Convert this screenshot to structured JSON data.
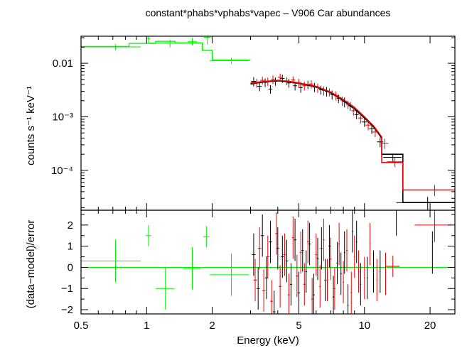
{
  "chart_data": [
    {
      "type": "scatter",
      "title": "constant*phabs*vphabs*vapec – V906 Car abundances",
      "xlabel": "",
      "ylabel": "counts s⁻¹ keV⁻¹",
      "xscale": "log",
      "yscale": "log",
      "xlim": [
        0.5,
        26
      ],
      "ylim": [
        1.8e-05,
        0.032
      ],
      "y_ticks": [
        {
          "value": 0.01,
          "label": "0.01"
        },
        {
          "value": 0.001,
          "label": "10⁻³"
        },
        {
          "value": 0.0001,
          "label": "10⁻⁴"
        }
      ],
      "grid": false,
      "colors": {
        "green": "#00ee00",
        "black": "#000000",
        "red": "#ee0000"
      },
      "series": [
        {
          "color": "#00ee00",
          "points": [
            [
              0.72,
              0.0202,
              0.22,
              0.0025
            ],
            [
              1.02,
              0.029,
              0.02,
              0.005
            ],
            [
              1.28,
              0.0238,
              0.25,
              0.004
            ],
            [
              1.62,
              0.0256,
              0.08,
              0.004
            ],
            [
              1.9,
              0.0305,
              0.07,
              0.008
            ],
            [
              2.45,
              0.0112,
              0.5,
              0.0015
            ]
          ],
          "model_step": [
            [
              0.5,
              0.0206
            ],
            [
              0.83,
              0.0206
            ],
            [
              0.83,
              0.0235
            ],
            [
              1.1,
              0.0235
            ],
            [
              1.1,
              0.0258
            ],
            [
              1.35,
              0.0258
            ],
            [
              1.35,
              0.024
            ],
            [
              1.8,
              0.024
            ],
            [
              1.8,
              0.0175
            ],
            [
              2.0,
              0.0175
            ],
            [
              2.0,
              0.0115
            ],
            [
              3.0,
              0.0115
            ]
          ]
        },
        {
          "color": "#000000",
          "points": [
            [
              3.1,
              0.0046,
              0.08,
              0.0009
            ],
            [
              3.3,
              0.0037,
              0.08,
              0.0007
            ],
            [
              3.5,
              0.0044,
              0.08,
              0.0008
            ],
            [
              3.7,
              0.0033,
              0.08,
              0.0006
            ],
            [
              3.9,
              0.0046,
              0.08,
              0.0008
            ],
            [
              4.2,
              0.0052,
              0.1,
              0.0009
            ],
            [
              4.5,
              0.0043,
              0.1,
              0.0008
            ],
            [
              4.8,
              0.0038,
              0.1,
              0.0007
            ],
            [
              5.1,
              0.0035,
              0.1,
              0.0007
            ],
            [
              5.5,
              0.004,
              0.12,
              0.0007
            ],
            [
              5.9,
              0.0036,
              0.12,
              0.0007
            ],
            [
              6.3,
              0.0032,
              0.12,
              0.0006
            ],
            [
              6.7,
              0.003,
              0.12,
              0.0006
            ],
            [
              7.1,
              0.0026,
              0.14,
              0.0005
            ],
            [
              7.6,
              0.0022,
              0.14,
              0.0004
            ],
            [
              8.1,
              0.0019,
              0.14,
              0.0004
            ],
            [
              8.6,
              0.0016,
              0.16,
              0.0003
            ],
            [
              9.2,
              0.0011,
              0.2,
              0.0002
            ],
            [
              10.0,
              0.0008,
              0.3,
              0.00015
            ],
            [
              10.8,
              0.0006,
              0.3,
              0.00012
            ],
            [
              11.8,
              0.00034,
              0.4,
              7e-05
            ],
            [
              13.5,
              0.000175,
              1.3,
              3e-05
            ],
            [
              19.5,
              2.5e-05,
              5.5,
              7e-06
            ]
          ],
          "model_step": [
            [
              3.0,
              0.0041
            ],
            [
              3.5,
              0.0045
            ],
            [
              4.0,
              0.0047
            ],
            [
              4.5,
              0.0045
            ],
            [
              5.0,
              0.0042
            ],
            [
              6.0,
              0.0036
            ],
            [
              7.0,
              0.0028
            ],
            [
              8.0,
              0.002
            ],
            [
              9.0,
              0.0014
            ],
            [
              10.0,
              0.00095
            ],
            [
              11.0,
              0.00065
            ],
            [
              12.0,
              0.0004
            ],
            [
              12.0,
              0.0002
            ],
            [
              15.0,
              0.0002
            ],
            [
              15.0,
              2.5e-05
            ],
            [
              26.0,
              2.5e-05
            ]
          ]
        },
        {
          "color": "#ee0000",
          "points": [
            [
              3.2,
              0.0043,
              0.08,
              0.0008
            ],
            [
              3.4,
              0.0048,
              0.08,
              0.0008
            ],
            [
              3.6,
              0.0046,
              0.08,
              0.0008
            ],
            [
              3.8,
              0.005,
              0.08,
              0.0009
            ],
            [
              4.1,
              0.0055,
              0.1,
              0.0009
            ],
            [
              4.4,
              0.0047,
              0.1,
              0.0008
            ],
            [
              4.7,
              0.0049,
              0.1,
              0.0008
            ],
            [
              5.0,
              0.0043,
              0.1,
              0.0008
            ],
            [
              5.3,
              0.0038,
              0.12,
              0.0007
            ],
            [
              5.7,
              0.0041,
              0.12,
              0.0007
            ],
            [
              6.1,
              0.0035,
              0.12,
              0.0007
            ],
            [
              6.5,
              0.0031,
              0.12,
              0.0006
            ],
            [
              6.9,
              0.0029,
              0.14,
              0.0005
            ],
            [
              7.4,
              0.0025,
              0.14,
              0.0005
            ],
            [
              7.9,
              0.002,
              0.14,
              0.0004
            ],
            [
              8.4,
              0.0017,
              0.16,
              0.0003
            ],
            [
              8.9,
              0.0013,
              0.2,
              0.00025
            ],
            [
              9.6,
              0.00095,
              0.25,
              0.0002
            ],
            [
              10.4,
              0.0007,
              0.3,
              0.00014
            ],
            [
              11.2,
              0.00052,
              0.35,
              0.0001
            ],
            [
              12.4,
              0.00032,
              0.5,
              7e-05
            ],
            [
              13.8,
              0.000145,
              1.1,
              3e-05
            ],
            [
              21.0,
              4.3e-05,
              5.0,
              1e-05
            ]
          ],
          "model_step": [
            [
              3.0,
              0.0043
            ],
            [
              3.5,
              0.0046
            ],
            [
              4.0,
              0.0048
            ],
            [
              4.5,
              0.0046
            ],
            [
              5.0,
              0.0043
            ],
            [
              6.0,
              0.0037
            ],
            [
              7.0,
              0.0029
            ],
            [
              8.0,
              0.0021
            ],
            [
              9.0,
              0.0015
            ],
            [
              10.0,
              0.001
            ],
            [
              11.0,
              0.00068
            ],
            [
              12.0,
              0.00042
            ],
            [
              12.0,
              0.00014
            ],
            [
              15.0,
              0.00014
            ],
            [
              15.0,
              4.3e-05
            ],
            [
              26.0,
              4.3e-05
            ]
          ]
        }
      ]
    },
    {
      "type": "scatter",
      "xlabel": "Energy (keV)",
      "ylabel": "(data−model)/error",
      "xscale": "log",
      "xlim": [
        0.5,
        26
      ],
      "ylim": [
        -2.2,
        2.7
      ],
      "x_ticks": [
        {
          "value": 0.5,
          "label": "0.5"
        },
        {
          "value": 1,
          "label": "1"
        },
        {
          "value": 2,
          "label": "2"
        },
        {
          "value": 5,
          "label": "5"
        },
        {
          "value": 10,
          "label": "10"
        },
        {
          "value": 20,
          "label": "20"
        }
      ],
      "y_ticks": [
        {
          "value": 2,
          "label": "2"
        },
        {
          "value": 1,
          "label": "1"
        },
        {
          "value": 0,
          "label": "0"
        },
        {
          "value": -1,
          "label": "−1"
        },
        {
          "value": -2,
          "label": "−2"
        }
      ],
      "zero_line": 0,
      "grid": false,
      "series": [
        {
          "color": "#00ee00",
          "points": [
            [
              0.72,
              0.3,
              0.22,
              1.0
            ],
            [
              1.02,
              1.5,
              0.03,
              0.5
            ],
            [
              1.22,
              -1.0,
              0.12,
              1.0
            ],
            [
              1.62,
              -0.05,
              0.15,
              1.0
            ],
            [
              1.88,
              1.45,
              0.06,
              0.5
            ],
            [
              2.45,
              -0.35,
              0.5,
              1.0
            ]
          ]
        },
        {
          "color": "#000000",
          "points": [
            [
              3.1,
              0.6,
              0.06,
              1.0
            ],
            [
              3.25,
              -1.0,
              0.06,
              1.0
            ],
            [
              3.4,
              1.5,
              0.06,
              1.0
            ],
            [
              3.55,
              -0.5,
              0.06,
              1.0
            ],
            [
              3.7,
              1.2,
              0.06,
              1.0
            ],
            [
              3.85,
              -2.1,
              0.06,
              1.0
            ],
            [
              4.0,
              0.9,
              0.06,
              1.0
            ],
            [
              4.2,
              0.5,
              0.06,
              1.0
            ],
            [
              4.4,
              0.3,
              0.06,
              1.0
            ],
            [
              4.6,
              -0.8,
              0.06,
              1.0
            ],
            [
              4.8,
              1.3,
              0.06,
              1.0
            ],
            [
              5.0,
              -1.2,
              0.06,
              1.0
            ],
            [
              5.2,
              0.8,
              0.06,
              1.0
            ],
            [
              5.4,
              -0.2,
              0.06,
              1.0
            ],
            [
              5.6,
              1.1,
              0.06,
              1.0
            ],
            [
              5.85,
              -1.3,
              0.06,
              1.0
            ],
            [
              6.1,
              0.4,
              0.06,
              1.0
            ],
            [
              6.35,
              0.9,
              0.06,
              1.0
            ],
            [
              6.6,
              -0.6,
              0.06,
              1.0
            ],
            [
              6.9,
              1.0,
              0.06,
              1.0
            ],
            [
              7.2,
              -1.4,
              0.06,
              1.0
            ],
            [
              7.5,
              0.2,
              0.06,
              1.0
            ],
            [
              7.8,
              -0.3,
              0.06,
              1.0
            ],
            [
              8.1,
              0.7,
              0.06,
              1.0
            ],
            [
              8.4,
              -1.8,
              0.06,
              1.0
            ],
            [
              8.8,
              1.7,
              0.06,
              1.0
            ],
            [
              9.2,
              1.2,
              0.06,
              1.0
            ],
            [
              9.6,
              -0.8,
              0.06,
              1.0
            ],
            [
              10.3,
              -0.5,
              0.06,
              1.0
            ],
            [
              11.0,
              -0.2,
              0.06,
              1.0
            ],
            [
              11.8,
              -0.2,
              0.06,
              1.0
            ],
            [
              14.0,
              2.5,
              0.06,
              1.0
            ],
            [
              20.5,
              0.7,
              0.06,
              1.0
            ]
          ]
        },
        {
          "color": "#ee0000",
          "points": [
            [
              3.15,
              -0.6,
              0.06,
              1.0
            ],
            [
              3.3,
              0.9,
              0.06,
              1.0
            ],
            [
              3.45,
              -1.1,
              0.06,
              1.0
            ],
            [
              3.6,
              0.5,
              0.06,
              1.0
            ],
            [
              3.75,
              -1.6,
              0.06,
              1.0
            ],
            [
              3.95,
              1.6,
              0.06,
              1.0
            ],
            [
              4.1,
              -0.9,
              0.06,
              1.0
            ],
            [
              4.3,
              0.6,
              0.06,
              1.0
            ],
            [
              4.5,
              -1.3,
              0.06,
              1.0
            ],
            [
              4.7,
              1.4,
              0.06,
              1.0
            ],
            [
              4.9,
              -0.4,
              0.06,
              1.0
            ],
            [
              5.1,
              0.7,
              0.06,
              1.0
            ],
            [
              5.3,
              -0.8,
              0.06,
              1.0
            ],
            [
              5.5,
              1.2,
              0.06,
              1.0
            ],
            [
              5.75,
              -1.5,
              0.06,
              1.0
            ],
            [
              6.0,
              0.6,
              0.06,
              1.0
            ],
            [
              6.25,
              -0.9,
              0.06,
              1.0
            ],
            [
              6.5,
              1.3,
              0.06,
              1.0
            ],
            [
              6.75,
              -0.6,
              0.06,
              1.0
            ],
            [
              7.0,
              0.4,
              0.06,
              1.0
            ],
            [
              7.3,
              -1.0,
              0.06,
              1.0
            ],
            [
              7.65,
              1.1,
              0.06,
              1.0
            ],
            [
              8.0,
              -0.7,
              0.06,
              1.0
            ],
            [
              8.3,
              0.8,
              0.06,
              1.0
            ],
            [
              8.7,
              -1.2,
              0.06,
              1.0
            ],
            [
              9.0,
              0.5,
              0.06,
              1.0
            ],
            [
              9.4,
              -0.2,
              0.06,
              1.0
            ],
            [
              10.0,
              -0.5,
              0.06,
              1.0
            ],
            [
              10.6,
              1.1,
              0.06,
              1.0
            ],
            [
              11.4,
              -0.6,
              0.06,
              1.0
            ],
            [
              12.5,
              -0.3,
              0.06,
              1.0
            ],
            [
              13.5,
              0.05,
              1.0,
              0.5
            ],
            [
              21.0,
              2.0,
              4.0,
              0.8
            ]
          ]
        }
      ]
    }
  ]
}
